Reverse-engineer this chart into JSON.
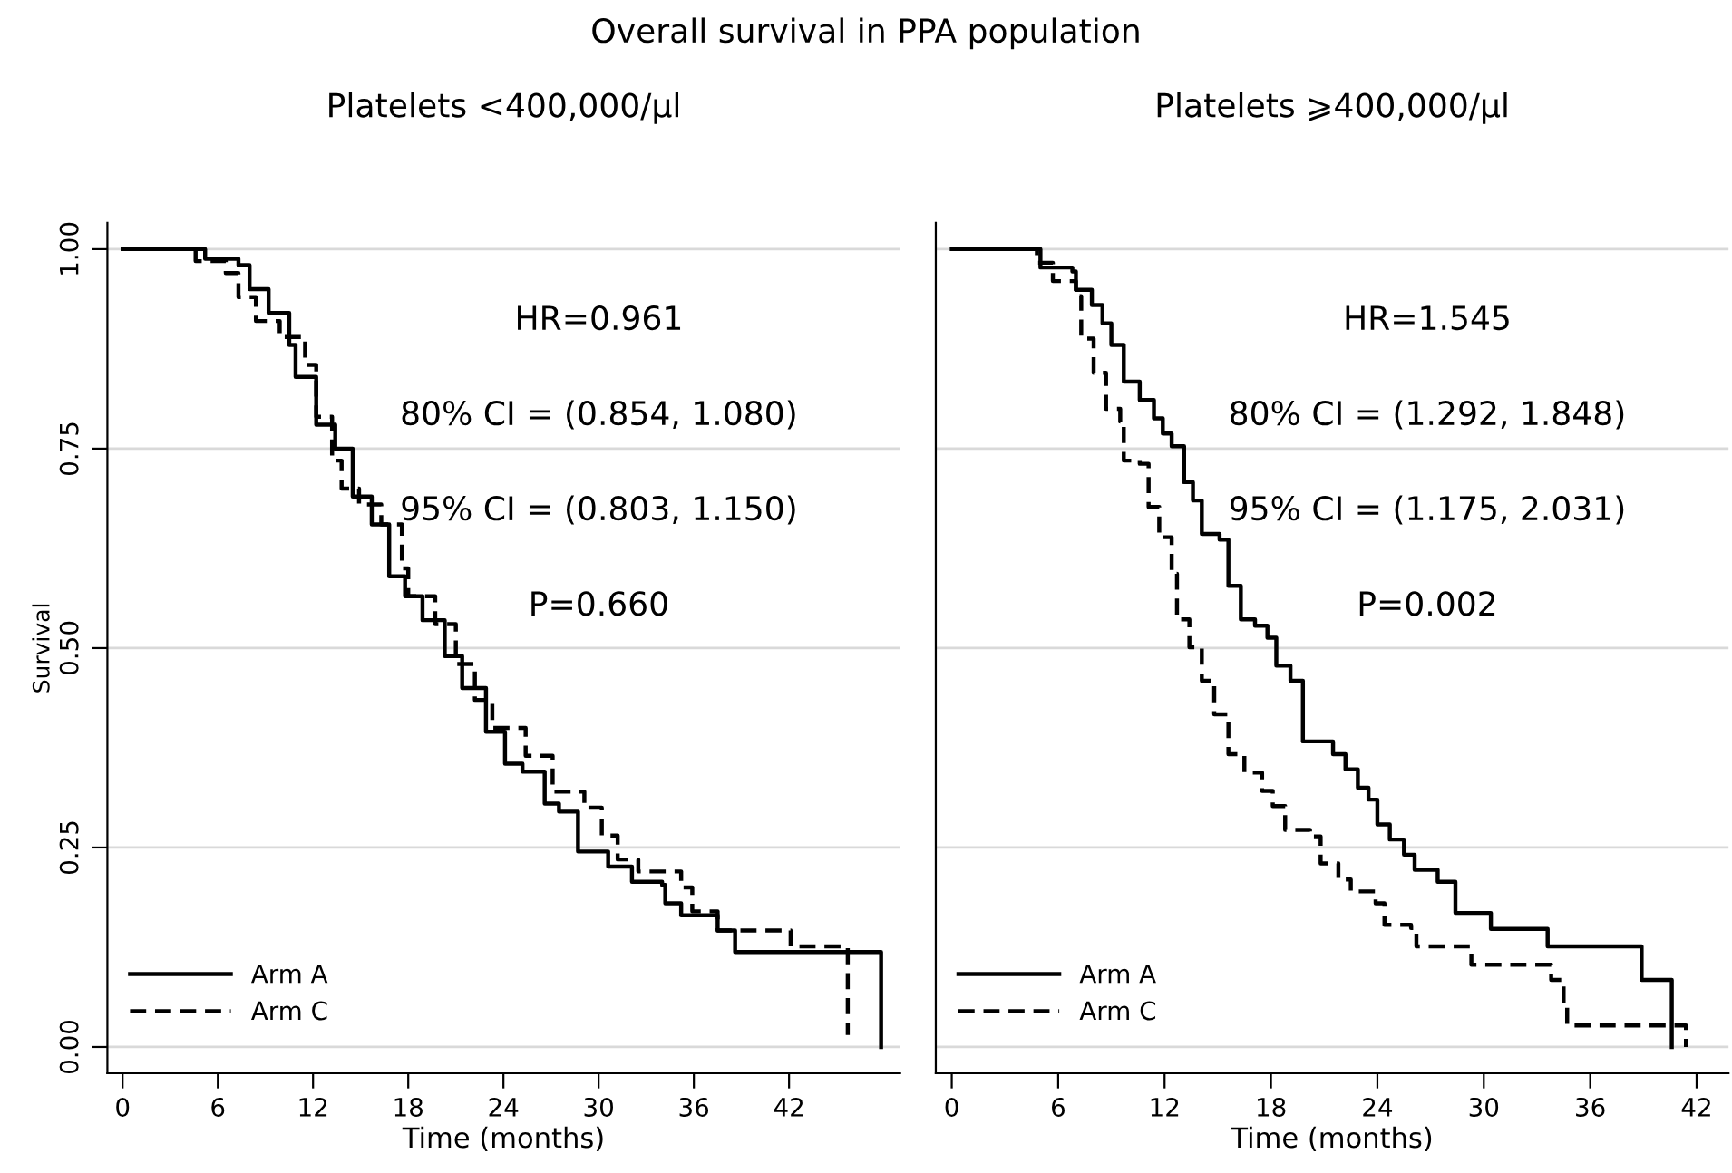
{
  "chart_data": [
    {
      "type": "step",
      "title": "Overall survival in PPA population",
      "subtitle": "Platelets <400,000/μl",
      "xlabel": "Time (months)",
      "ylabel": "Survival",
      "xlim": [
        -0.96,
        49
      ],
      "ylim": [
        -0.033,
        1.033
      ],
      "xticks": [
        0,
        6,
        12,
        18,
        24,
        30,
        36,
        42
      ],
      "yticks": [
        {
          "value": 0,
          "label": "0.00"
        },
        {
          "value": 0.25,
          "label": "0.25"
        },
        {
          "value": 0.5,
          "label": "0.50"
        },
        {
          "value": 0.75,
          "label": "0.75"
        },
        {
          "value": 1,
          "label": "1.00"
        }
      ],
      "grid": "y",
      "legend": "bottom left",
      "annotations": [
        "HR=0.961",
        "80% CI = (0.854, 1.080)",
        "95% CI = (0.803, 1.150)",
        "P=0.660"
      ],
      "series": [
        {
          "name": "Arm A",
          "color": "#000000",
          "line_style": "solid",
          "x": [
            0,
            5.2,
            7.3,
            8.0,
            9.2,
            10.5,
            10.9,
            11.7,
            12.2,
            13.4,
            14.5,
            15.7,
            16.8,
            17.8,
            18.9,
            20.3,
            21.4,
            22.9,
            24.1,
            25.2,
            26.6,
            27.5,
            28.7,
            30.6,
            32.1,
            34.0,
            34.2,
            35.2,
            36.9,
            37.5,
            38.6,
            47.8
          ],
          "values": [
            1.0,
            0.988,
            0.98,
            0.95,
            0.92,
            0.88,
            0.84,
            0.84,
            0.78,
            0.75,
            0.69,
            0.655,
            0.59,
            0.565,
            0.535,
            0.49,
            0.45,
            0.395,
            0.355,
            0.345,
            0.305,
            0.295,
            0.245,
            0.226,
            0.207,
            0.203,
            0.18,
            0.165,
            0.165,
            0.146,
            0.119,
            0
          ]
        },
        {
          "name": "Arm C",
          "color": "#000000",
          "line_style": "dashed",
          "x": [
            0,
            4.6,
            6.5,
            7.3,
            8.4,
            9.9,
            11.5,
            12.2,
            13.2,
            13.8,
            14.9,
            16.3,
            17.6,
            18.0,
            19.7,
            21.0,
            22.2,
            23.3,
            25.4,
            27.1,
            29.1,
            30.2,
            31.2,
            32.5,
            35.2,
            35.9,
            37.5,
            42.1,
            45.7
          ],
          "values": [
            1.0,
            0.985,
            0.97,
            0.94,
            0.91,
            0.89,
            0.855,
            0.79,
            0.735,
            0.7,
            0.68,
            0.655,
            0.6,
            0.565,
            0.53,
            0.48,
            0.435,
            0.4,
            0.365,
            0.32,
            0.3,
            0.265,
            0.235,
            0.22,
            0.2,
            0.17,
            0.146,
            0.126,
            0.015
          ]
        }
      ]
    },
    {
      "type": "step",
      "subtitle": "Platelets ⩾400,000/μl",
      "xlabel": "Time (months)",
      "xlim": [
        -0.9,
        43.8
      ],
      "ylim": [
        -0.033,
        1.033
      ],
      "xticks": [
        0,
        6,
        12,
        18,
        24,
        30,
        36,
        42
      ],
      "yticks": [
        {
          "value": 0,
          "label": null
        },
        {
          "value": 0.25,
          "label": null
        },
        {
          "value": 0.5,
          "label": null
        },
        {
          "value": 0.75,
          "label": null
        },
        {
          "value": 1,
          "label": null
        }
      ],
      "tick_labels": "x",
      "grid": "y",
      "legend": "bottom left",
      "annotations": [
        "HR=1.545",
        "80% CI = (1.292, 1.848)",
        "95% CI = (1.175, 2.031)",
        "P=0.002"
      ],
      "series": [
        {
          "name": "Arm A",
          "color": "#000000",
          "line_style": "solid",
          "x": [
            0,
            5.0,
            6.8,
            7.0,
            7.9,
            8.5,
            9.0,
            9.7,
            10.6,
            11.4,
            11.9,
            12.4,
            13.1,
            13.6,
            14.1,
            15.1,
            15.6,
            16.3,
            17.1,
            17.8,
            18.3,
            19.1,
            19.8,
            21.5,
            22.2,
            22.9,
            23.5,
            24.0,
            24.7,
            25.5,
            26.1,
            27.4,
            28.4,
            30.4,
            33.6,
            38.9,
            40.6
          ],
          "values": [
            1.0,
            0.977,
            0.972,
            0.949,
            0.93,
            0.907,
            0.88,
            0.834,
            0.811,
            0.788,
            0.769,
            0.753,
            0.708,
            0.685,
            0.643,
            0.636,
            0.578,
            0.536,
            0.528,
            0.513,
            0.478,
            0.459,
            0.383,
            0.367,
            0.348,
            0.325,
            0.31,
            0.279,
            0.26,
            0.241,
            0.222,
            0.207,
            0.168,
            0.148,
            0.126,
            0.084,
            0
          ]
        },
        {
          "name": "Arm C",
          "color": "#000000",
          "line_style": "dashed",
          "x": [
            0,
            4.8,
            5.7,
            7.0,
            7.3,
            8.0,
            8.7,
            9.5,
            9.7,
            10.6,
            11.1,
            11.7,
            12.4,
            12.7,
            13.4,
            14.1,
            14.8,
            15.6,
            16.5,
            17.5,
            18.1,
            18.8,
            20.2,
            20.8,
            21.8,
            22.5,
            23.9,
            24.4,
            25.9,
            26.2,
            29.3,
            33.8,
            34.5,
            34.7,
            41.4
          ],
          "values": [
            1.0,
            0.983,
            0.96,
            0.941,
            0.888,
            0.845,
            0.8,
            0.784,
            0.735,
            0.731,
            0.677,
            0.639,
            0.593,
            0.536,
            0.501,
            0.459,
            0.417,
            0.367,
            0.344,
            0.321,
            0.302,
            0.272,
            0.264,
            0.23,
            0.21,
            0.195,
            0.18,
            0.153,
            0.149,
            0.126,
            0.103,
            0.084,
            0.054,
            0.027,
            0
          ]
        }
      ]
    }
  ]
}
